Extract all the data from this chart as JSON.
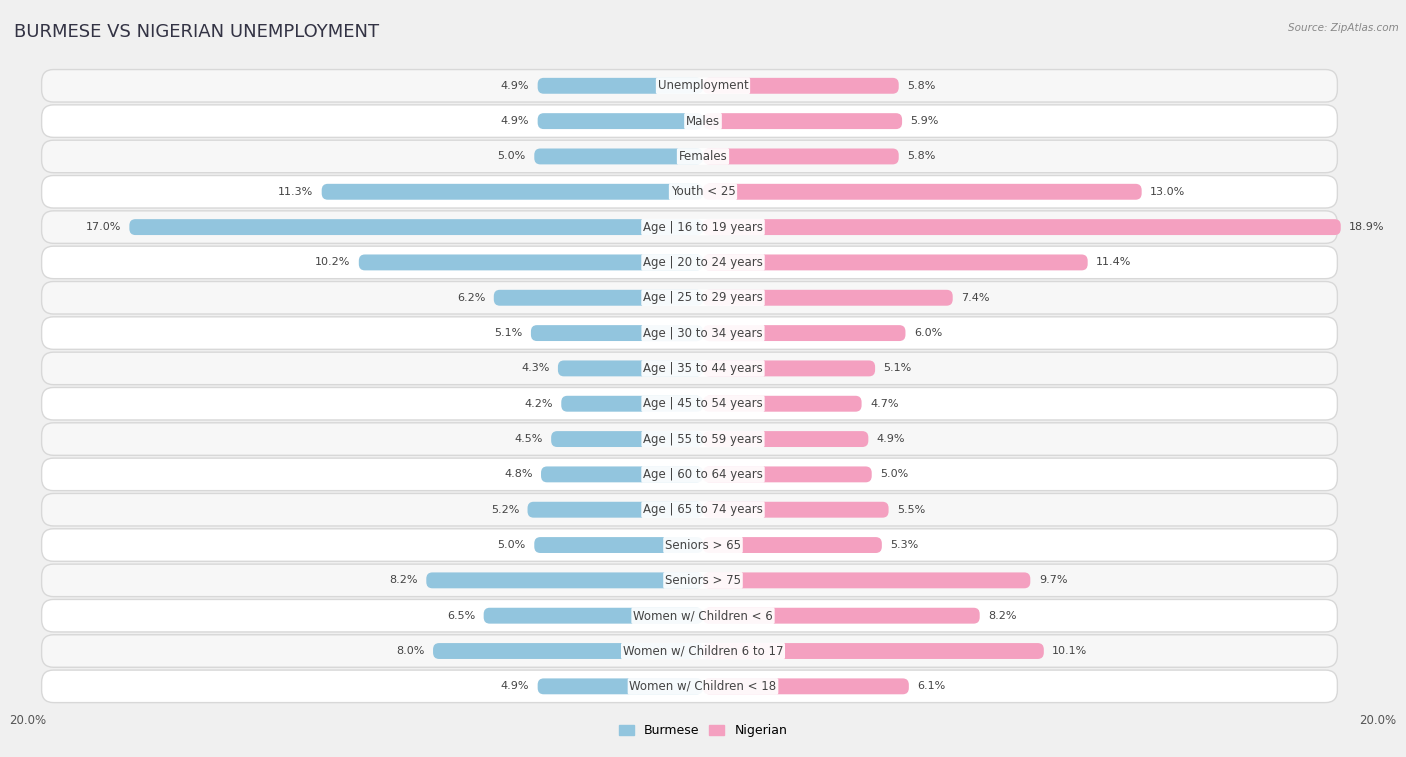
{
  "title": "BURMESE VS NIGERIAN UNEMPLOYMENT",
  "source": "Source: ZipAtlas.com",
  "categories": [
    "Unemployment",
    "Males",
    "Females",
    "Youth < 25",
    "Age | 16 to 19 years",
    "Age | 20 to 24 years",
    "Age | 25 to 29 years",
    "Age | 30 to 34 years",
    "Age | 35 to 44 years",
    "Age | 45 to 54 years",
    "Age | 55 to 59 years",
    "Age | 60 to 64 years",
    "Age | 65 to 74 years",
    "Seniors > 65",
    "Seniors > 75",
    "Women w/ Children < 6",
    "Women w/ Children 6 to 17",
    "Women w/ Children < 18"
  ],
  "burmese": [
    4.9,
    4.9,
    5.0,
    11.3,
    17.0,
    10.2,
    6.2,
    5.1,
    4.3,
    4.2,
    4.5,
    4.8,
    5.2,
    5.0,
    8.2,
    6.5,
    8.0,
    4.9
  ],
  "nigerian": [
    5.8,
    5.9,
    5.8,
    13.0,
    18.9,
    11.4,
    7.4,
    6.0,
    5.1,
    4.7,
    4.9,
    5.0,
    5.5,
    5.3,
    9.7,
    8.2,
    10.1,
    6.1
  ],
  "burmese_color": "#92c5de",
  "nigerian_color": "#f4a0c0",
  "row_bg_even": "#f7f7f7",
  "row_bg_odd": "#ffffff",
  "row_border": "#d8d8d8",
  "bg_color": "#f0f0f0",
  "axis_max": 20.0,
  "title_fontsize": 13,
  "label_fontsize": 8.5,
  "value_fontsize": 8.0
}
